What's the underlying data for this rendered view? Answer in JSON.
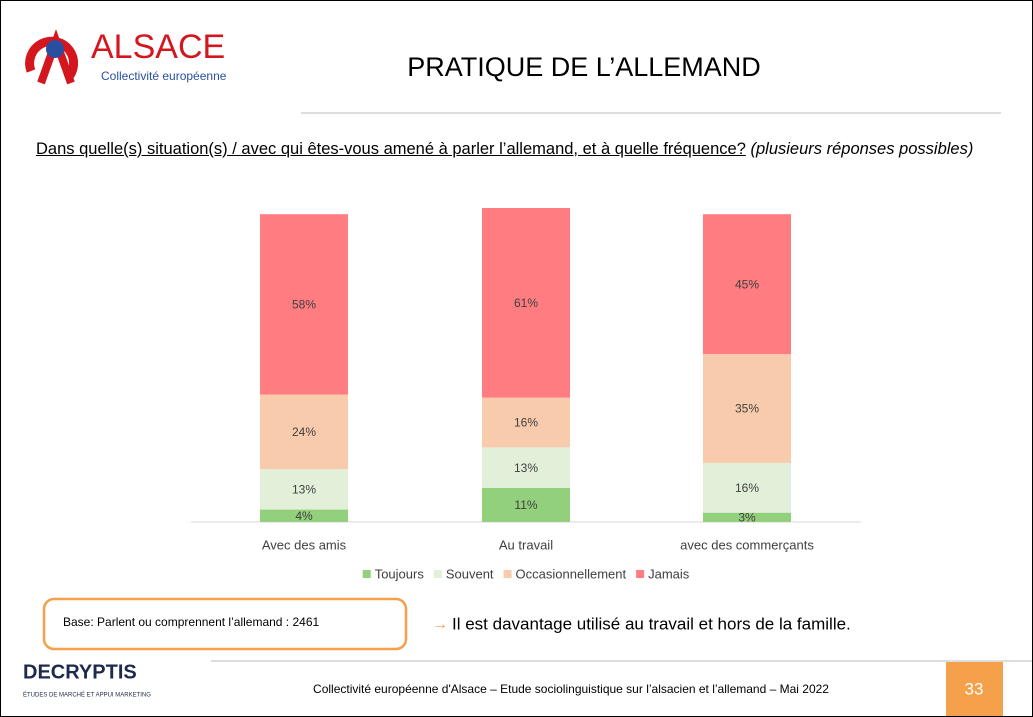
{
  "header": {
    "logo": "ALSACE",
    "logo_subtitle": "Collectivité européenne",
    "title": "PRATIQUE DE L’ALLEMAND",
    "question": "Dans quelle(s) situation(s) / avec qui êtes-vous amené à parler l’allemand, et à quelle fréquence?",
    "question_note": "(plusieurs réponses possibles)"
  },
  "chart_data": {
    "type": "stacked_bar",
    "categories": [
      "Avec des amis",
      "Au travail",
      "avec des commerçants"
    ],
    "series": [
      {
        "name": "Toujours",
        "color": "#92d07c",
        "values": [
          4,
          11,
          3
        ],
        "value_labels": [
          "4%",
          "11%",
          "3%"
        ]
      },
      {
        "name": "Souvent",
        "color": "#e2efd9",
        "values": [
          13,
          13,
          16
        ],
        "value_labels": [
          "13%",
          "13%",
          "16%"
        ]
      },
      {
        "name": "Occasionnellement",
        "color": "#f8cbad",
        "values": [
          24,
          16,
          35
        ],
        "value_labels": [
          "24%",
          "16%",
          "35%"
        ]
      },
      {
        "name": "Jamais",
        "color": "#ff7c80",
        "values": [
          58,
          61,
          45
        ],
        "value_labels": [
          "58%",
          "61%",
          "45%"
        ]
      }
    ],
    "legend": "bottom"
  },
  "base_note": "Base: Parlent ou comprennent l’allemand :  2461",
  "conclusion": "Il est davantage utilisé au travail et hors de la famille.",
  "footer": {
    "brand": "DECRYPTIS",
    "brand_tagline": "ÉTUDES DE MARCHÉ ET APPUI MARKETING",
    "text": "Collectivité européenne d'Alsace – Etude sociolinguistique sur l’alsacien et l’allemand – Mai 2022",
    "page": "33"
  }
}
